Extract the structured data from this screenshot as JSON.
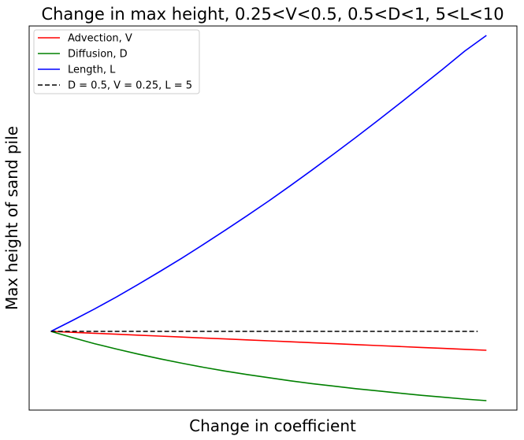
{
  "chart_data": {
    "type": "line",
    "title": "Change in max height, 0.25<V<0.5, 0.5<D<1, 5<L<10",
    "xlabel": "Change in coefficient",
    "ylabel": "Max height of sand pile",
    "xlim": [
      -0.05,
      1.07
    ],
    "ylim": [
      -0.25,
      0.97
    ],
    "grid": false,
    "legend_placement": "top-left",
    "x": [
      0,
      0.05,
      0.1,
      0.15,
      0.2,
      0.25,
      0.3,
      0.35,
      0.4,
      0.45,
      0.5,
      0.55,
      0.6,
      0.65,
      0.7,
      0.75,
      0.8,
      0.85,
      0.9,
      0.95,
      1.0
    ],
    "series": [
      {
        "name": "Advection, V",
        "color": "#ff0000",
        "dash": "solid",
        "values": [
          0,
          -0.003,
          -0.006,
          -0.009,
          -0.012,
          -0.015,
          -0.018,
          -0.021,
          -0.024,
          -0.027,
          -0.03,
          -0.033,
          -0.036,
          -0.039,
          -0.042,
          -0.045,
          -0.048,
          -0.051,
          -0.054,
          -0.057,
          -0.06
        ]
      },
      {
        "name": "Diffusion, D",
        "color": "#008000",
        "dash": "solid",
        "values": [
          0,
          -0.02,
          -0.039,
          -0.056,
          -0.072,
          -0.087,
          -0.101,
          -0.114,
          -0.126,
          -0.137,
          -0.147,
          -0.157,
          -0.166,
          -0.174,
          -0.182,
          -0.189,
          -0.196,
          -0.203,
          -0.209,
          -0.215,
          -0.22
        ]
      },
      {
        "name": "Length, L",
        "color": "#0000ff",
        "dash": "solid",
        "values": [
          0,
          0.035,
          0.071,
          0.109,
          0.149,
          0.19,
          0.232,
          0.276,
          0.321,
          0.367,
          0.414,
          0.463,
          0.513,
          0.564,
          0.616,
          0.669,
          0.723,
          0.778,
          0.833,
          0.89,
          0.94
        ]
      },
      {
        "name": "D = 0.5, V = 0.25, L = 5",
        "color": "#000000",
        "dash": "dashed",
        "x": [
          0,
          0.98
        ],
        "values": [
          0,
          0
        ]
      }
    ]
  }
}
